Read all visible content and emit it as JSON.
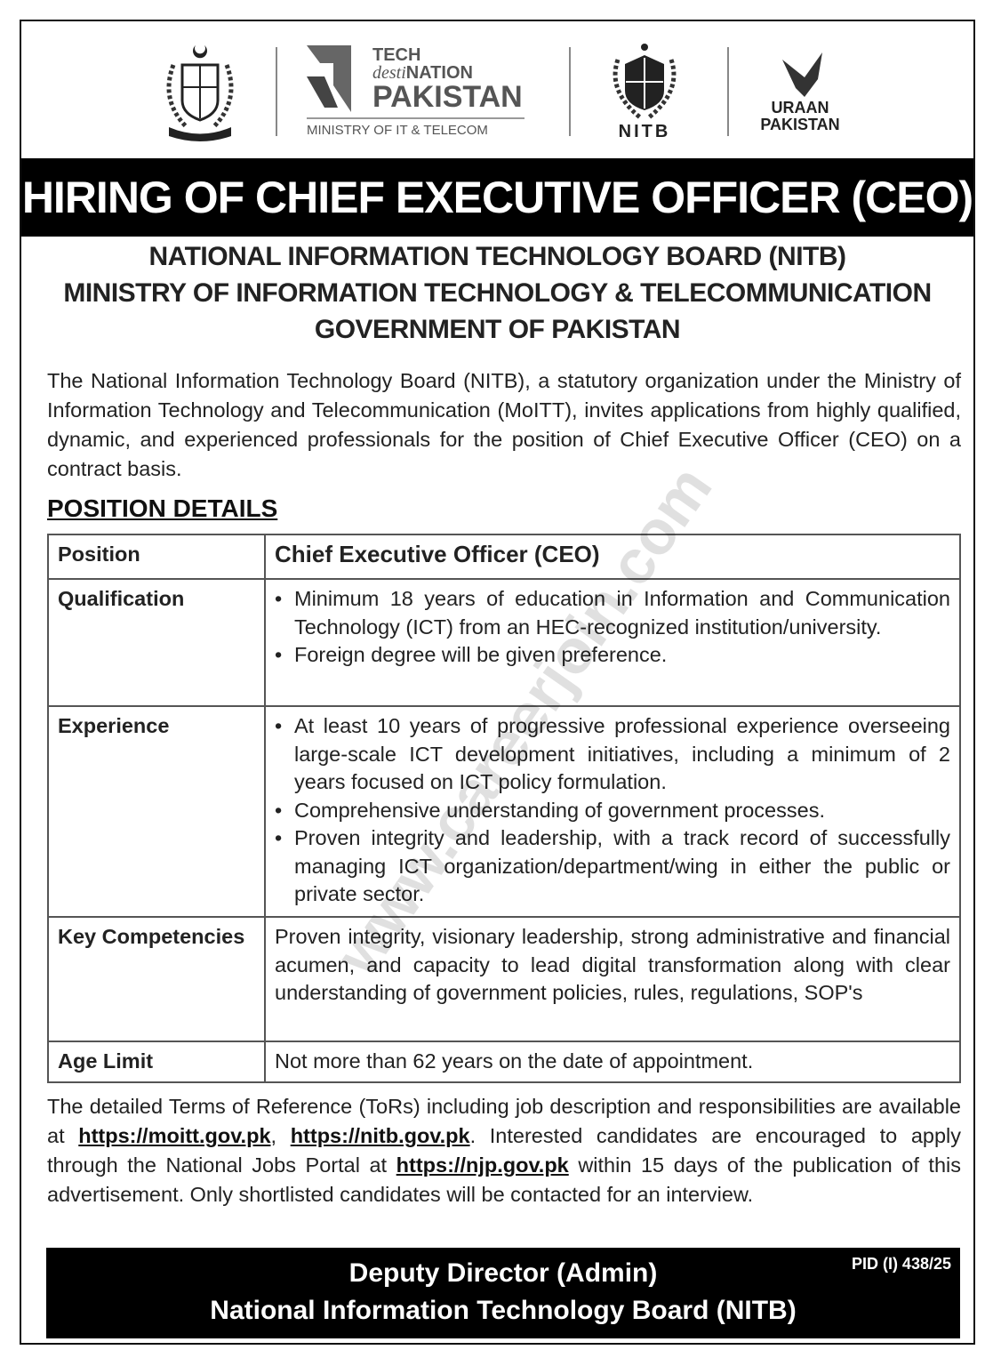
{
  "logos": {
    "emblem": "Government of Pakistan emblem",
    "tech_line1": "TECH",
    "tech_line2_italic": "desti",
    "tech_line2": "NATION",
    "tech_line3": "PAKISTAN",
    "ministry": "MINISTRY OF IT & TELECOM",
    "nitb": "NITB",
    "uraan1": "URAAN",
    "uraan2": "PAKISTAN"
  },
  "title": "HIRING OF CHIEF EXECUTIVE OFFICER (CEO)",
  "org": [
    "NATIONAL INFORMATION TECHNOLOGY BOARD (NITB)",
    "MINISTRY OF INFORMATION TECHNOLOGY & TELECOMMUNICATION",
    "GOVERNMENT OF PAKISTAN"
  ],
  "intro": "The National Information Technology Board (NITB), a statutory organization under the Ministry of Information Technology and Telecommunication (MoITT), invites applications from highly qualified, dynamic, and experienced professionals for the position of Chief Executive Officer (CEO) on a contract basis.",
  "section_heading": "POSITION DETAILS",
  "table": {
    "position": {
      "label": "Position",
      "value": "Chief Executive Officer (CEO)"
    },
    "qualification": {
      "label": "Qualification",
      "items": [
        "Minimum 18 years of education in Information and Communication Technology (ICT) from an HEC-recognized institution/university.",
        "Foreign degree will be given preference."
      ]
    },
    "experience": {
      "label": "Experience",
      "items": [
        "At least 10 years of progressive professional experience overseeing large-scale ICT development initiatives, including a minimum of 2 years focused on ICT policy formulation.",
        "Comprehensive understanding of government processes.",
        "Proven integrity and leadership, with a track record of successfully managing ICT organization/department/wing in either the public or private sector."
      ]
    },
    "competencies": {
      "label": "Key Competencies",
      "value": "Proven integrity, visionary leadership, strong administrative and financial acumen, and capacity to lead digital transformation along with clear understanding of government policies, rules, regulations, SOP's"
    },
    "age": {
      "label": "Age Limit",
      "value": "Not more than 62 years on the date of appointment."
    }
  },
  "closing": {
    "t1": "The detailed Terms of Reference (ToRs) including job description and responsibilities are available at ",
    "link1": "https://moitt.gov.pk",
    "t2": ", ",
    "link2": "https://nitb.gov.pk",
    "t3": ". Interested candidates are encouraged to apply through the National Jobs Portal at ",
    "link3": "https://njp.gov.pk",
    "t4": " within 15 days of the publication of this advertisement. Only shortlisted candidates will be contacted for an interview."
  },
  "footer": {
    "line1": "Deputy Director (Admin)",
    "line2": "National Information Technology Board (NITB)",
    "pid": "PID (I) 438/25"
  },
  "watermark": "www.careerjoin.com"
}
